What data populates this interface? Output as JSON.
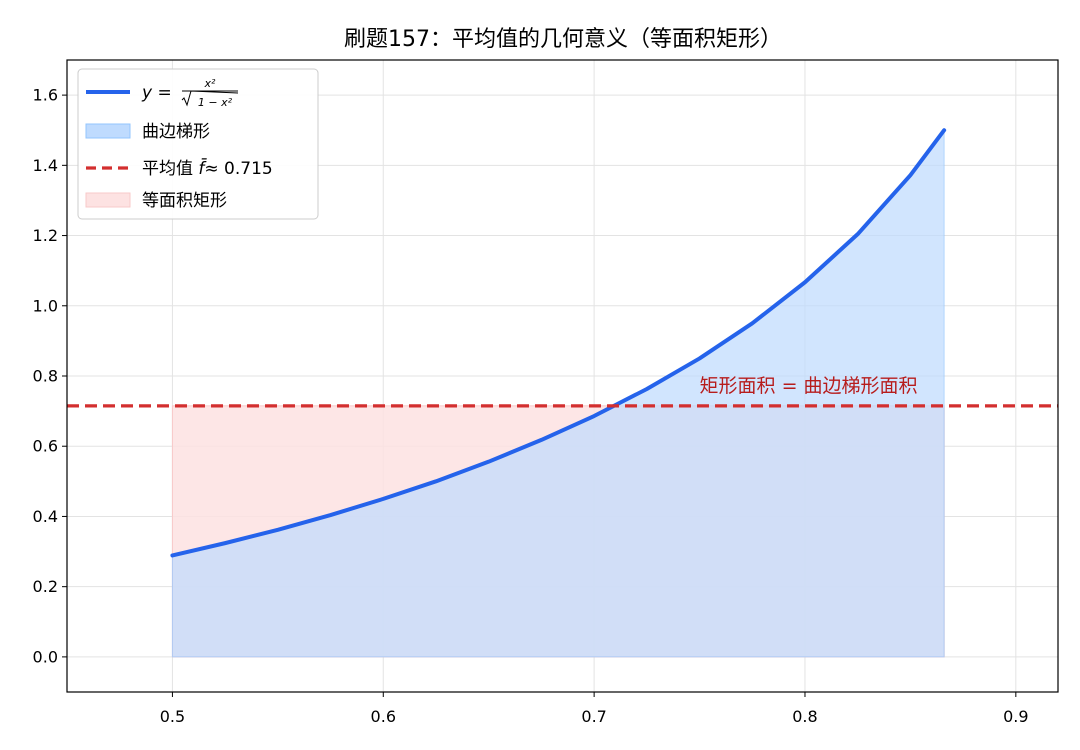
{
  "chart_data": {
    "type": "line",
    "title": "刷题157：平均值的几何意义（等面积矩形）",
    "xlabel": "",
    "ylabel": "",
    "xlim": [
      0.45,
      0.92
    ],
    "ylim": [
      -0.1,
      1.7
    ],
    "xticks": [
      0.5,
      0.6,
      0.7,
      0.8,
      0.9
    ],
    "xtick_labels": [
      "0.5",
      "0.6",
      "0.7",
      "0.8",
      "0.9"
    ],
    "yticks": [
      0.0,
      0.2,
      0.4,
      0.6,
      0.8,
      1.0,
      1.2,
      1.4,
      1.6
    ],
    "ytick_labels": [
      "0.0",
      "0.2",
      "0.4",
      "0.6",
      "0.8",
      "1.0",
      "1.2",
      "1.4",
      "1.6"
    ],
    "grid": true,
    "legend_position": "upper-left",
    "series": [
      {
        "kind": "curve",
        "name": "y = x² / √(1 − x²)",
        "legend_prefix": "y = ",
        "legend_numerator": "x²",
        "legend_denominator": "1 − x²",
        "color": "#2563eb",
        "x": [
          0.5,
          0.525,
          0.55,
          0.575,
          0.6,
          0.625,
          0.65,
          0.675,
          0.7,
          0.725,
          0.75,
          0.775,
          0.8,
          0.825,
          0.85,
          0.866
        ],
        "y": [
          0.289,
          0.324,
          0.362,
          0.404,
          0.45,
          0.5,
          0.556,
          0.618,
          0.686,
          0.763,
          0.85,
          0.95,
          1.067,
          1.204,
          1.372,
          1.5
        ]
      },
      {
        "kind": "area",
        "name": "曲边梯形",
        "color": "#bfdbfe",
        "stroke": "#93c5fd",
        "under_series": 0
      },
      {
        "kind": "hline",
        "name": "平均值",
        "legend_suffix": "≈ 0.715",
        "color": "#d32f2f",
        "y": 0.715
      },
      {
        "kind": "rect",
        "name": "等面积矩形",
        "color": "#fde2e2",
        "stroke": "#f8c9c9",
        "x": [
          0.5,
          0.866
        ],
        "height": 0.715
      }
    ],
    "annotations": [
      {
        "text": "矩形面积 = 曲边梯形面积",
        "x": 0.75,
        "y": 0.755,
        "color": "#b71c1c"
      }
    ]
  }
}
